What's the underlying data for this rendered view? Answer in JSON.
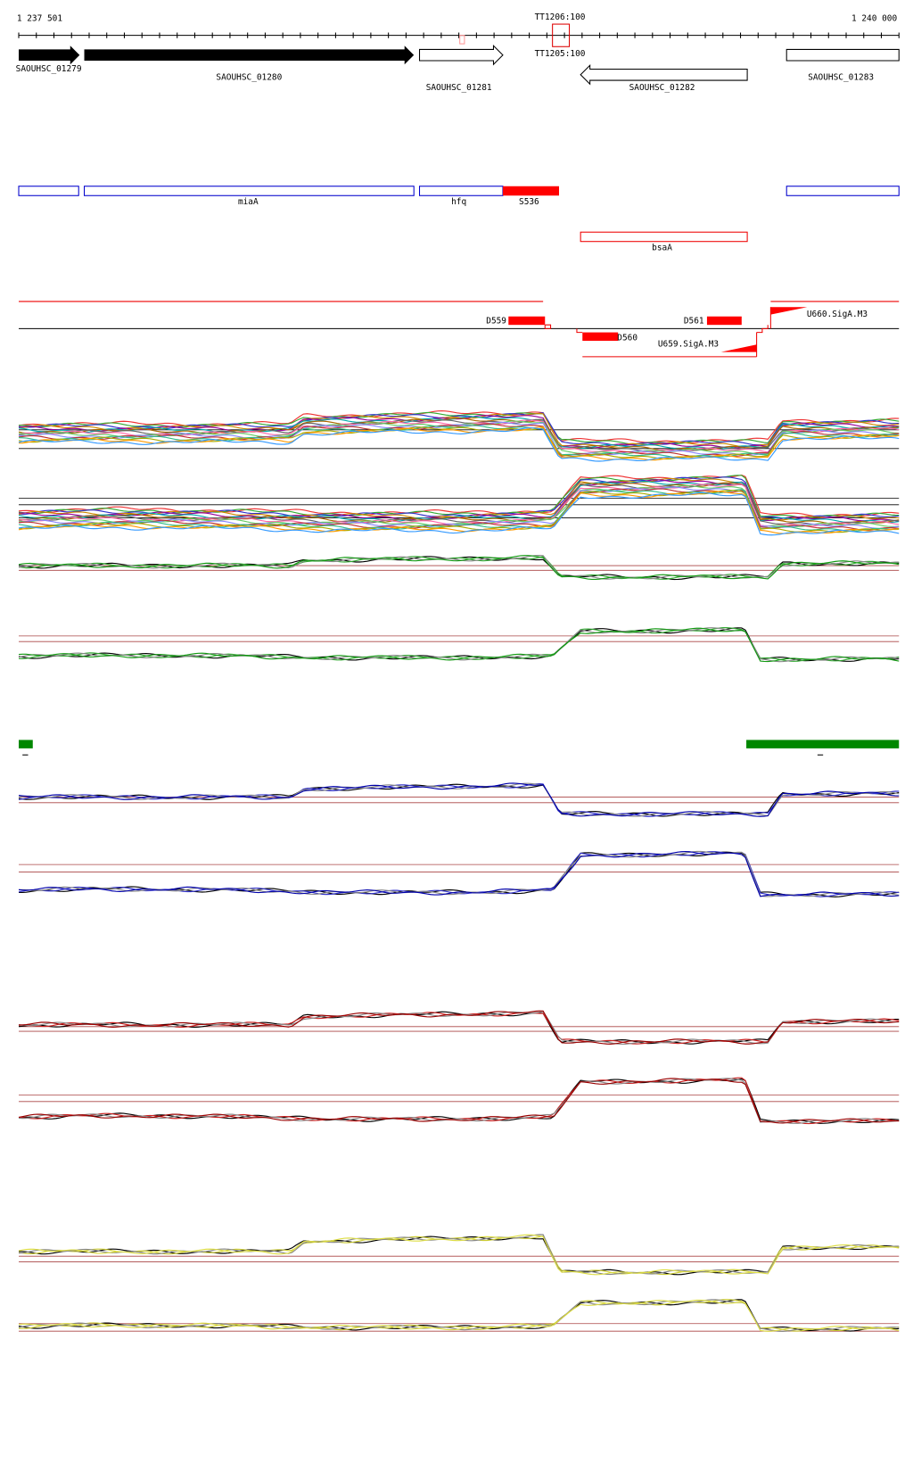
{
  "ruler": {
    "start": "1 237 501",
    "end": "1 240 000",
    "terminators": [
      "TT1206:100",
      "TT1205:100"
    ]
  },
  "genes": [
    "SAOUHSC_01279",
    "SAOUHSC_01280",
    "SAOUHSC_01281",
    "SAOUHSC_01282",
    "SAOUHSC_01283"
  ],
  "features": {
    "operons": [
      "miaA",
      "hfq",
      "S536"
    ],
    "antisense": "bsaA"
  },
  "segments": [
    "D559",
    "D560",
    "D561",
    "U659.SigA.M3",
    "U660.SigA.M3"
  ]
}
